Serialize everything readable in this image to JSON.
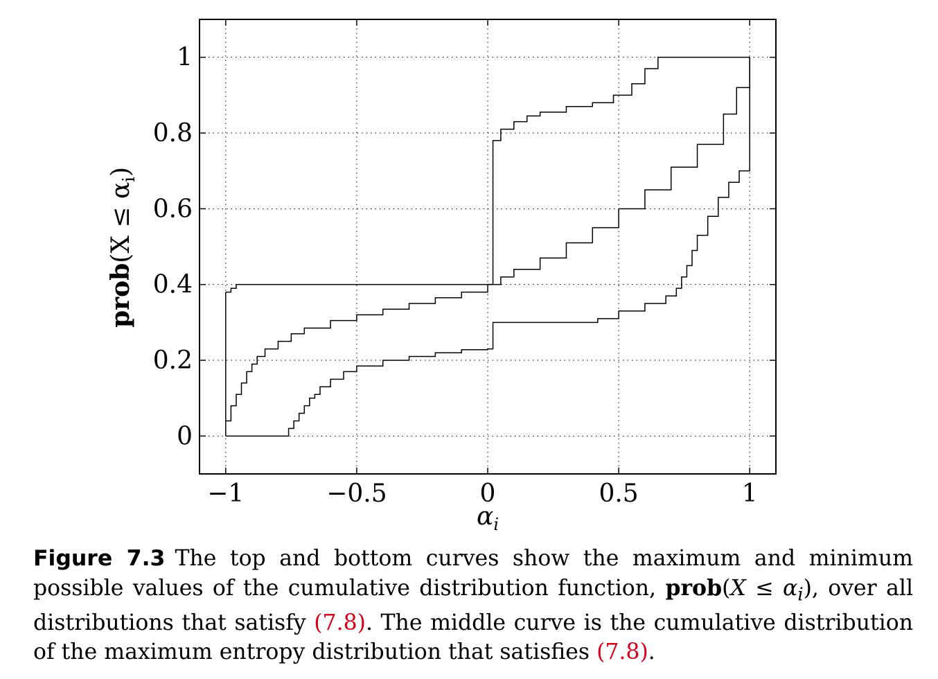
{
  "chart_data": {
    "type": "line",
    "title": "",
    "xlabel": "α",
    "xlabel_sub": "i",
    "ylabel_prefix": "prob",
    "ylabel_rest": "(X ≤ α",
    "ylabel_sub": "i",
    "ylabel_close": ")",
    "xlim": [
      -1.1,
      1.1
    ],
    "ylim": [
      -0.1,
      1.1
    ],
    "grid": true,
    "x_ticks": [
      -1,
      -0.5,
      0,
      0.5,
      1
    ],
    "x_tick_labels": [
      "−1",
      "−0.5",
      "0",
      "0.5",
      "1"
    ],
    "y_ticks": [
      0,
      0.2,
      0.4,
      0.6,
      0.8,
      1
    ],
    "y_tick_labels": [
      "0",
      "0.2",
      "0.4",
      "0.6",
      "0.8",
      "1"
    ],
    "series": [
      {
        "role": "upper",
        "x": [
          -1,
          -0.98,
          -0.96,
          0,
          0.02,
          0.05,
          0.1,
          0.15,
          0.2,
          0.3,
          0.4,
          0.48,
          0.55,
          0.6,
          0.65,
          1
        ],
        "y": [
          0.38,
          0.39,
          0.4,
          0.4,
          0.78,
          0.81,
          0.83,
          0.845,
          0.855,
          0.87,
          0.88,
          0.9,
          0.93,
          0.97,
          1.0,
          1.0
        ]
      },
      {
        "role": "middle",
        "x": [
          -1,
          -0.98,
          -0.96,
          -0.94,
          -0.92,
          -0.9,
          -0.88,
          -0.85,
          -0.8,
          -0.75,
          -0.7,
          -0.6,
          -0.5,
          -0.4,
          -0.3,
          -0.2,
          -0.1,
          0,
          0.05,
          0.1,
          0.2,
          0.3,
          0.4,
          0.5,
          0.6,
          0.7,
          0.8,
          0.9,
          0.95,
          1
        ],
        "y": [
          0.04,
          0.08,
          0.11,
          0.14,
          0.17,
          0.19,
          0.21,
          0.23,
          0.25,
          0.27,
          0.285,
          0.305,
          0.32,
          0.335,
          0.35,
          0.365,
          0.38,
          0.4,
          0.42,
          0.44,
          0.47,
          0.51,
          0.55,
          0.6,
          0.65,
          0.71,
          0.77,
          0.85,
          0.92,
          1.0
        ]
      },
      {
        "role": "lower",
        "x": [
          -1,
          -0.78,
          -0.76,
          -0.74,
          -0.72,
          -0.7,
          -0.68,
          -0.66,
          -0.64,
          -0.6,
          -0.55,
          -0.5,
          -0.4,
          -0.3,
          -0.2,
          -0.1,
          0,
          0.02,
          0.1,
          0.2,
          0.3,
          0.38,
          0.42,
          0.5,
          0.6,
          0.68,
          0.72,
          0.74,
          0.76,
          0.78,
          0.8,
          0.84,
          0.88,
          0.92,
          0.96,
          1
        ],
        "y": [
          0,
          0,
          0.02,
          0.04,
          0.06,
          0.08,
          0.1,
          0.11,
          0.13,
          0.15,
          0.17,
          0.185,
          0.2,
          0.21,
          0.22,
          0.228,
          0.23,
          0.3,
          0.3,
          0.3,
          0.3,
          0.3,
          0.31,
          0.33,
          0.35,
          0.37,
          0.39,
          0.42,
          0.45,
          0.49,
          0.53,
          0.58,
          0.63,
          0.67,
          0.7,
          0.72
        ]
      }
    ]
  },
  "caption": {
    "label": "Figure 7.3",
    "text1": "The top and bottom curves show the maximum and minimum possible values of the cumulative distribution function,",
    "prob": "prob",
    "expr_open": "(",
    "expr_x": "X",
    "expr_le": " ≤ ",
    "expr_alpha": "α",
    "expr_sub": "i",
    "expr_close": ")",
    "text2": ", over all distributions that satisfy",
    "ref1": "(7.8)",
    "text3": ". The middle curve is the cumulative distribution of the maximum entropy distribution that satisfies",
    "ref2": "(7.8)",
    "text4": "."
  }
}
